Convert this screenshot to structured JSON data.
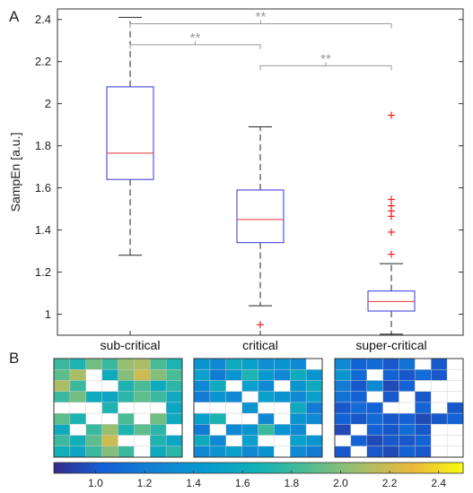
{
  "panels": {
    "a_label": "A",
    "b_label": "B"
  },
  "chart_data": {
    "type": "box",
    "title": "",
    "xlabel": "",
    "ylabel": "SampEn [a.u.]",
    "ylim": [
      0.9,
      2.45
    ],
    "yticks": [
      1,
      1.2,
      1.4,
      1.6,
      1.8,
      2,
      2.2,
      2.4
    ],
    "categories": [
      "sub-critical",
      "critical",
      "super-critical"
    ],
    "boxes": [
      {
        "category": "sub-critical",
        "whisker_low": 1.28,
        "q1": 1.64,
        "median": 1.765,
        "q3": 2.08,
        "whisker_high": 2.41,
        "outliers": []
      },
      {
        "category": "critical",
        "whisker_low": 1.04,
        "q1": 1.34,
        "median": 1.45,
        "q3": 1.59,
        "whisker_high": 1.89,
        "outliers": [
          0.95
        ]
      },
      {
        "category": "super-critical",
        "whisker_low": 0.905,
        "q1": 1.015,
        "median": 1.06,
        "q3": 1.11,
        "whisker_high": 1.24,
        "outliers": [
          1.285,
          1.39,
          1.465,
          1.49,
          1.515,
          1.545,
          1.945
        ]
      }
    ],
    "significance": [
      {
        "from": 0,
        "to": 2,
        "label": "**",
        "y": 2.38
      },
      {
        "from": 0,
        "to": 1,
        "label": "**",
        "y": 2.28
      },
      {
        "from": 1,
        "to": 2,
        "label": "**",
        "y": 2.18
      }
    ],
    "colors": {
      "box": "#3333dd",
      "median": "#ee3333",
      "whisker": "#222222",
      "outlier": "#ee2222",
      "bracket": "#999999"
    },
    "colorbar": {
      "range": [
        0.83,
        2.5
      ],
      "ticks": [
        "1.0",
        "1.2",
        "1.4",
        "1.6",
        "1.8",
        "2.0",
        "2.2",
        "2.4"
      ],
      "colormap": "parula"
    },
    "heatmaps": [
      {
        "name": "sub-critical",
        "grid": [
          [
            1.8,
            1.7,
            1.95,
            1.8,
            2.05,
            2.1,
            1.85,
            1.7
          ],
          [
            1.9,
            2.1,
            null,
            1.6,
            2.0,
            2.2,
            2.0,
            1.85
          ],
          [
            2.1,
            1.8,
            null,
            null,
            1.7,
            1.85,
            1.6,
            1.75
          ],
          [
            1.8,
            1.95,
            1.6,
            1.55,
            1.75,
            1.9,
            1.8,
            1.6
          ],
          [
            null,
            null,
            null,
            1.7,
            null,
            null,
            null,
            1.55
          ],
          [
            1.9,
            1.7,
            null,
            null,
            1.85,
            null,
            1.95,
            1.6
          ],
          [
            1.6,
            null,
            1.8,
            2.05,
            1.7,
            1.9,
            1.75,
            null
          ],
          [
            1.8,
            1.65,
            1.9,
            2.2,
            null,
            null,
            1.7,
            1.55
          ],
          [
            1.65,
            1.55,
            1.8,
            2.0,
            1.8,
            null,
            1.6,
            1.75
          ]
        ]
      },
      {
        "name": "critical",
        "grid": [
          [
            1.4,
            1.3,
            1.6,
            1.5,
            1.35,
            1.4,
            1.3,
            null
          ],
          [
            1.5,
            1.2,
            1.4,
            1.7,
            1.45,
            1.3,
            1.6,
            1.4
          ],
          [
            1.3,
            1.6,
            null,
            1.5,
            1.3,
            null,
            1.4,
            1.6
          ],
          [
            1.2,
            1.4,
            1.3,
            null,
            1.5,
            1.4,
            1.3,
            1.5
          ],
          [
            null,
            null,
            null,
            1.4,
            null,
            null,
            1.6,
            1.2
          ],
          [
            1.5,
            1.7,
            null,
            null,
            1.3,
            null,
            1.4,
            1.3
          ],
          [
            1.2,
            null,
            1.3,
            1.4,
            1.8,
            1.4,
            1.3,
            null
          ],
          [
            1.6,
            1.3,
            null,
            1.5,
            null,
            null,
            1.5,
            1.4
          ],
          [
            1.3,
            1.4,
            1.5,
            1.3,
            1.4,
            null,
            1.3,
            1.2
          ]
        ]
      },
      {
        "name": "super-critical",
        "grid": [
          [
            1.3,
            1.05,
            1.1,
            1.0,
            1.15,
            null,
            1.0,
            null
          ],
          [
            1.4,
            1.1,
            null,
            1.05,
            1.0,
            1.1,
            1.0,
            null
          ],
          [
            1.2,
            1.0,
            1.3,
            0.95,
            1.05,
            null,
            null,
            null
          ],
          [
            1.15,
            1.05,
            null,
            1.0,
            null,
            1.0,
            null,
            null
          ],
          [
            1.0,
            1.1,
            1.05,
            null,
            null,
            1.05,
            null,
            1.0
          ],
          [
            1.05,
            1.0,
            1.1,
            1.0,
            1.05,
            0.95,
            1.0,
            1.05
          ],
          [
            0.95,
            null,
            1.05,
            1.0,
            1.1,
            1.0,
            null,
            null
          ],
          [
            null,
            1.05,
            0.95,
            1.0,
            1.0,
            1.05,
            null,
            null
          ],
          [
            1.0,
            null,
            1.0,
            0.95,
            1.05,
            1.0,
            null,
            null
          ]
        ]
      }
    ]
  }
}
